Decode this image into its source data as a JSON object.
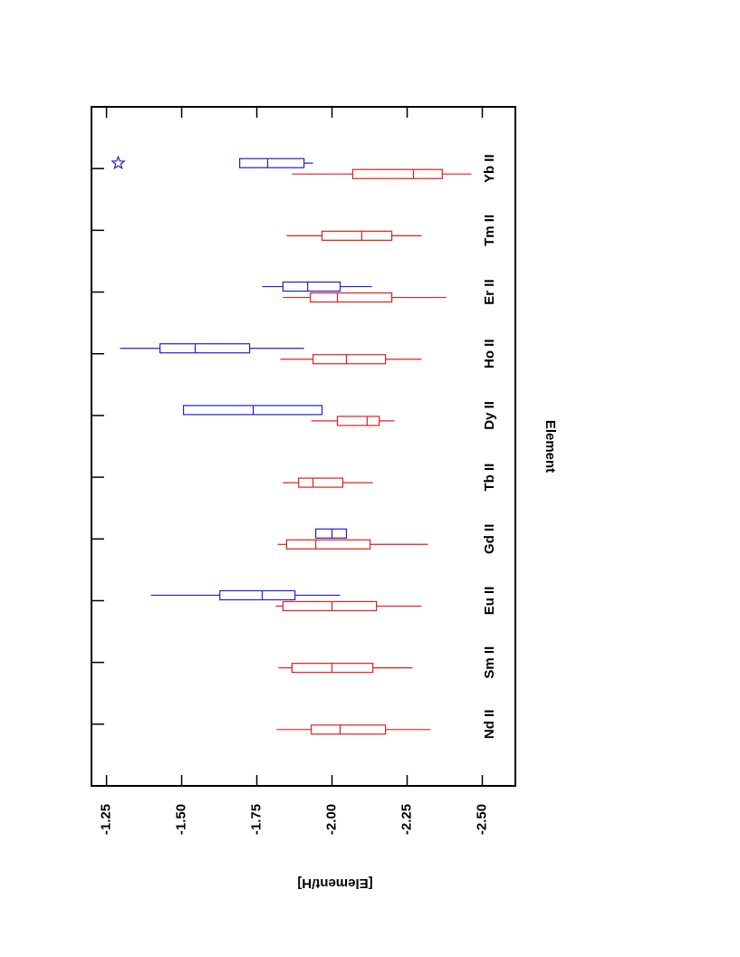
{
  "chart_data": {
    "type": "box",
    "x_label": "Element",
    "y_label": "[Element/H]",
    "categories": [
      "Nd II",
      "Sm II",
      "Eu II",
      "Gd II",
      "Tb II",
      "Dy II",
      "Ho II",
      "Er II",
      "Tm II",
      "Yb II"
    ],
    "ylim": [
      -1.2,
      -2.61
    ],
    "yticks": [
      {
        "value": -1.25,
        "label": "-1.25"
      },
      {
        "value": -1.5,
        "label": "-1.50"
      },
      {
        "value": -1.75,
        "label": "-1.75"
      },
      {
        "value": -2.0,
        "label": "-2.00"
      },
      {
        "value": -2.25,
        "label": "-2.25"
      },
      {
        "value": -2.5,
        "label": "-2.50"
      }
    ],
    "series": [
      {
        "color": "#e02020",
        "whislo": [
          -1.816,
          -1.822,
          -1.813,
          -1.819,
          -1.837,
          -1.931,
          -1.828,
          -1.837,
          -1.849,
          -1.867
        ],
        "q1": [
          -1.931,
          -1.867,
          -1.837,
          -1.849,
          -1.889,
          -2.018,
          -1.937,
          -1.928,
          -1.967,
          -2.069
        ],
        "med": [
          -2.027,
          -2.0,
          -2.0,
          -1.946,
          -1.937,
          -2.117,
          -2.048,
          -2.018,
          -2.099,
          -2.271
        ],
        "q3": [
          -2.178,
          -2.136,
          -2.148,
          -2.127,
          -2.036,
          -2.157,
          -2.178,
          -2.199,
          -2.199,
          -2.367
        ],
        "whishi": [
          -2.328,
          -2.268,
          -2.298,
          -2.319,
          -2.136,
          -2.208,
          -2.298,
          -2.38,
          -2.298,
          -2.464
        ],
        "stars": [
          null,
          null,
          null,
          null,
          null,
          null,
          null,
          null,
          null,
          null
        ]
      },
      {
        "color": "#2020d0",
        "whislo": [
          null,
          null,
          -1.398,
          null,
          null,
          null,
          -1.295,
          -1.768,
          null,
          -1.693
        ],
        "q1": [
          null,
          null,
          -1.627,
          -1.946,
          null,
          -1.506,
          -1.428,
          -1.837,
          null,
          -1.693
        ],
        "med": [
          null,
          null,
          -1.768,
          -2.0,
          null,
          -1.738,
          -1.545,
          -1.919,
          null,
          -1.786
        ],
        "q3": [
          null,
          null,
          -1.877,
          -2.048,
          null,
          -1.967,
          -1.726,
          -2.027,
          null,
          -1.907
        ],
        "whishi": [
          null,
          null,
          -2.027,
          null,
          null,
          null,
          -1.907,
          -2.133,
          null,
          -1.937
        ],
        "stars": [
          null,
          null,
          null,
          null,
          null,
          null,
          null,
          null,
          null,
          -1.289
        ]
      }
    ]
  }
}
